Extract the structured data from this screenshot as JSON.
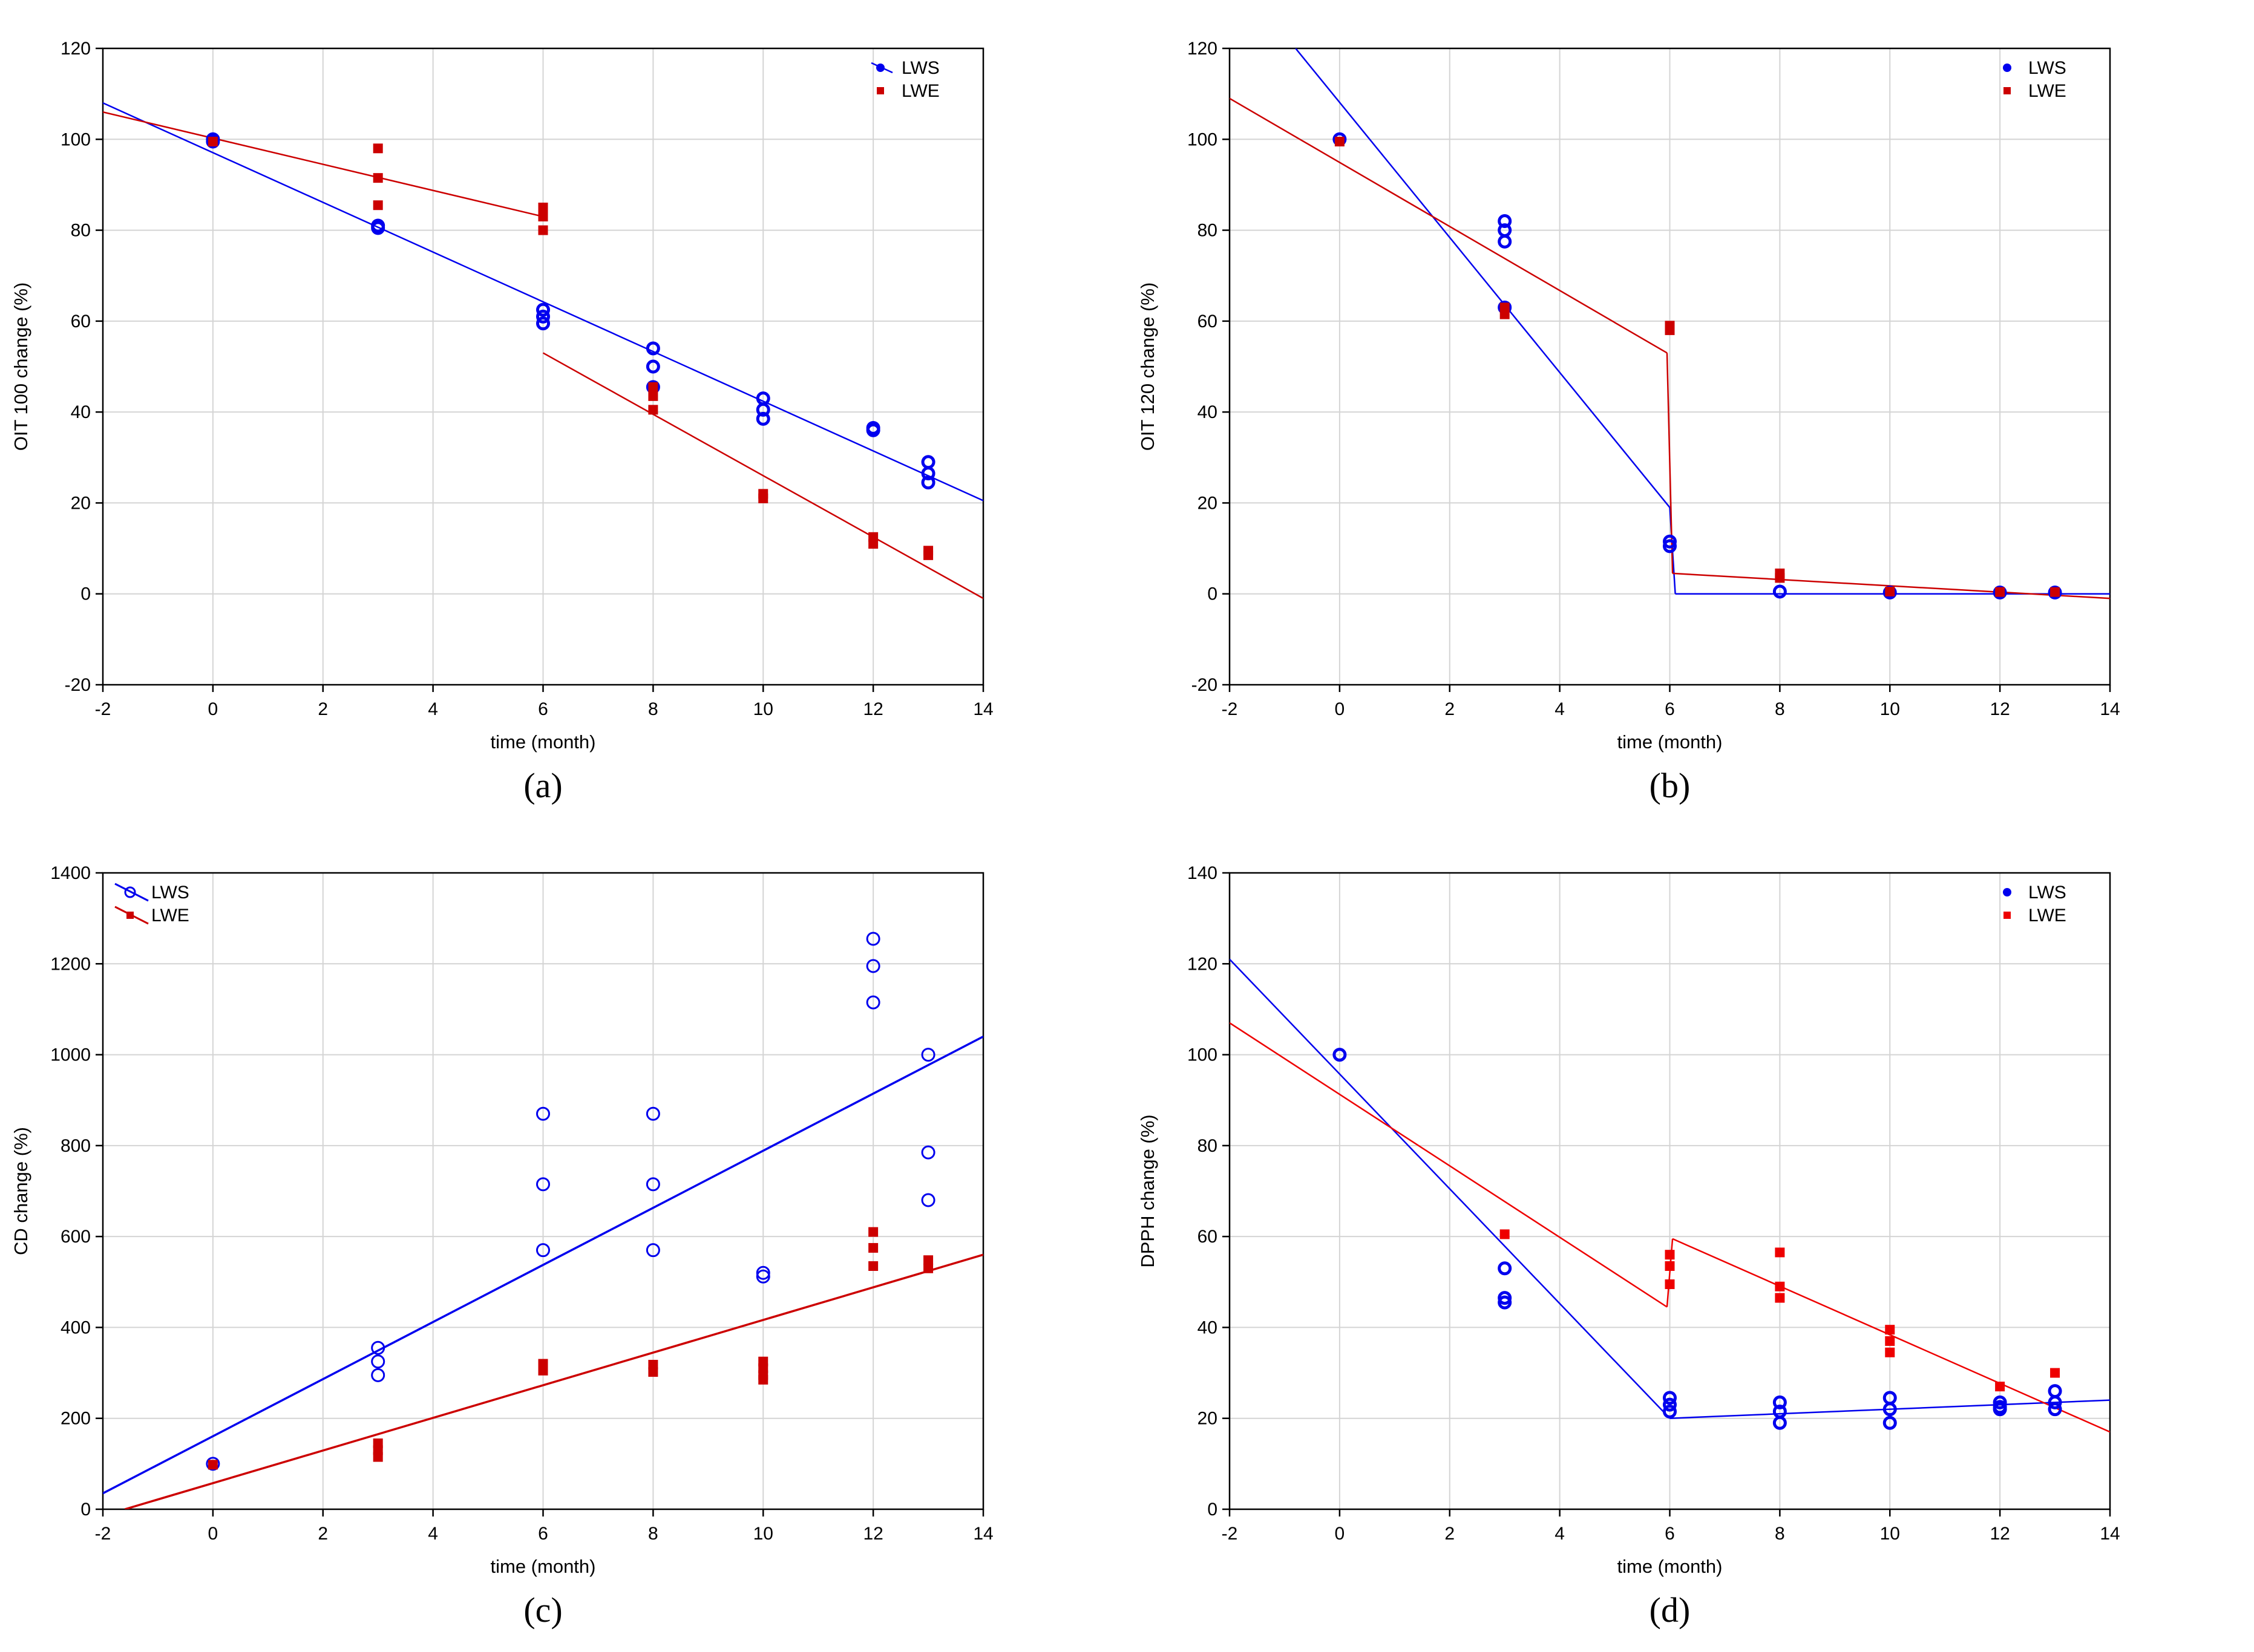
{
  "chart_data": [
    {
      "id": "a",
      "type": "scatter",
      "caption": "(a)",
      "xlabel": "time (month)",
      "ylabel": "OIT 100 change (%)",
      "xlim": [
        -2,
        14
      ],
      "ylim": [
        -20,
        120
      ],
      "xticks": [
        -2,
        0,
        2,
        4,
        6,
        8,
        10,
        12,
        14
      ],
      "yticks": [
        -20,
        0,
        20,
        40,
        60,
        80,
        100,
        120
      ],
      "grid": true,
      "legend": "top-right",
      "series": [
        {
          "name": "LWS",
          "color": "#0000ee",
          "marker": "ring",
          "points": [
            [
              0,
              99.5
            ],
            [
              0,
              100
            ],
            [
              3,
              80.5
            ],
            [
              3,
              81
            ],
            [
              6,
              59.5
            ],
            [
              6,
              61
            ],
            [
              6,
              62.5
            ],
            [
              8,
              50
            ],
            [
              8,
              54
            ],
            [
              8,
              45.5
            ],
            [
              10,
              38.5
            ],
            [
              10,
              40.5
            ],
            [
              10,
              43
            ],
            [
              12,
              36
            ],
            [
              12,
              36.5
            ],
            [
              13,
              24.5
            ],
            [
              13,
              26.5
            ],
            [
              13,
              29
            ]
          ],
          "fit": [
            [
              [
                -2,
                108
              ],
              [
                14,
                20.5
              ]
            ]
          ]
        },
        {
          "name": "LWE",
          "color": "#cc0000",
          "marker": "square",
          "points": [
            [
              0,
              99.5
            ],
            [
              3,
              98
            ],
            [
              3,
              91.5
            ],
            [
              3,
              85.5
            ],
            [
              6,
              85
            ],
            [
              6,
              83
            ],
            [
              6,
              80
            ],
            [
              8,
              45.5
            ],
            [
              8,
              43.5
            ],
            [
              8,
              40.5
            ],
            [
              10,
              21
            ],
            [
              10,
              22
            ],
            [
              12,
              11
            ],
            [
              12,
              12.5
            ],
            [
              13,
              8.5
            ],
            [
              13,
              9.5
            ]
          ],
          "fit": [
            [
              [
                -2,
                106
              ],
              [
                6,
                83
              ]
            ],
            [
              [
                6,
                53
              ],
              [
                14,
                -1
              ]
            ]
          ]
        }
      ]
    },
    {
      "id": "b",
      "type": "scatter",
      "caption": "(b)",
      "xlabel": "time (month)",
      "ylabel": "OIT 120 change (%)",
      "xlim": [
        -2,
        14
      ],
      "ylim": [
        -20,
        120
      ],
      "xticks": [
        -2,
        0,
        2,
        4,
        6,
        8,
        10,
        12,
        14
      ],
      "yticks": [
        -20,
        0,
        20,
        40,
        60,
        80,
        100,
        120
      ],
      "grid": true,
      "legend": "top-right",
      "series": [
        {
          "name": "LWS",
          "color": "#0000ee",
          "marker": "ring",
          "points": [
            [
              0,
              100
            ],
            [
              3,
              77.5
            ],
            [
              3,
              80
            ],
            [
              3,
              82
            ],
            [
              3,
              63
            ],
            [
              6,
              10.5
            ],
            [
              6,
              11.5
            ],
            [
              8,
              0.5
            ],
            [
              10,
              0.3
            ],
            [
              12,
              0.3
            ],
            [
              13,
              0.3
            ]
          ],
          "fit": [
            [
              [
                -0.8,
                120
              ],
              [
                6,
                19
              ]
            ],
            [
              [
                6,
                19
              ],
              [
                6.1,
                0
              ]
            ],
            [
              [
                6.1,
                0
              ],
              [
                14,
                0
              ]
            ]
          ]
        },
        {
          "name": "LWE",
          "color": "#cc0000",
          "marker": "square",
          "points": [
            [
              0,
              99.5
            ],
            [
              3,
              63
            ],
            [
              3,
              61.5
            ],
            [
              6,
              58
            ],
            [
              6,
              59
            ],
            [
              8,
              3.5
            ],
            [
              8,
              4.5
            ],
            [
              10,
              0.5
            ],
            [
              12,
              0.4
            ],
            [
              13,
              0.4
            ]
          ],
          "fit": [
            [
              [
                -2,
                109
              ],
              [
                5.95,
                53
              ]
            ],
            [
              [
                5.95,
                53
              ],
              [
                6.05,
                4.5
              ]
            ],
            [
              [
                6.05,
                4.5
              ],
              [
                14,
                -1
              ]
            ]
          ]
        }
      ]
    },
    {
      "id": "c",
      "type": "scatter",
      "caption": "(c)",
      "xlabel": "time (month)",
      "ylabel": "CD change (%)",
      "xlim": [
        -2,
        14
      ],
      "ylim": [
        0,
        1400
      ],
      "xticks": [
        -2,
        0,
        2,
        4,
        6,
        8,
        10,
        12,
        14
      ],
      "yticks": [
        0,
        200,
        400,
        600,
        800,
        1000,
        1200,
        1400
      ],
      "grid": true,
      "legend": "top-left",
      "series": [
        {
          "name": "LWS",
          "color": "#0000ee",
          "marker": "open",
          "points": [
            [
              0,
              100
            ],
            [
              3,
              355
            ],
            [
              3,
              325
            ],
            [
              3,
              295
            ],
            [
              6,
              870
            ],
            [
              6,
              715
            ],
            [
              6,
              570
            ],
            [
              8,
              870
            ],
            [
              8,
              715
            ],
            [
              8,
              570
            ],
            [
              10,
              520
            ],
            [
              10,
              512
            ],
            [
              12,
              1255
            ],
            [
              12,
              1195
            ],
            [
              12,
              1115
            ],
            [
              13,
              1000
            ],
            [
              13,
              785
            ],
            [
              13,
              680
            ]
          ],
          "fit": [
            [
              [
                -2,
                35
              ],
              [
                14,
                1040
              ]
            ]
          ]
        },
        {
          "name": "LWE",
          "color": "#cc0000",
          "marker": "square",
          "points": [
            [
              0,
              98
            ],
            [
              3,
              145
            ],
            [
              3,
              130
            ],
            [
              3,
              115
            ],
            [
              6,
              320
            ],
            [
              6,
              305
            ],
            [
              8,
              318
            ],
            [
              8,
              302
            ],
            [
              10,
              325
            ],
            [
              10,
              310
            ],
            [
              10,
              295
            ],
            [
              10,
              285
            ],
            [
              12,
              610
            ],
            [
              12,
              575
            ],
            [
              12,
              535
            ],
            [
              13,
              548
            ],
            [
              13,
              530
            ]
          ],
          "fit": [
            [
              [
                -1.6,
                0
              ],
              [
                14,
                560
              ]
            ]
          ]
        }
      ]
    },
    {
      "id": "d",
      "type": "scatter",
      "caption": "(d)",
      "xlabel": "time (month)",
      "ylabel": "DPPH change (%)",
      "xlim": [
        -2,
        14
      ],
      "ylim": [
        0,
        140
      ],
      "xticks": [
        -2,
        0,
        2,
        4,
        6,
        8,
        10,
        12,
        14
      ],
      "yticks": [
        0,
        20,
        40,
        60,
        80,
        100,
        120,
        140
      ],
      "grid": true,
      "legend": "top-right",
      "series": [
        {
          "name": "LWS",
          "color": "#0000ee",
          "marker": "ring",
          "points": [
            [
              0,
              100
            ],
            [
              3,
              53
            ],
            [
              3,
              46.5
            ],
            [
              3,
              45.5
            ],
            [
              6,
              24.5
            ],
            [
              6,
              23
            ],
            [
              6,
              21.5
            ],
            [
              8,
              23.5
            ],
            [
              8,
              21.5
            ],
            [
              8,
              19
            ],
            [
              10,
              24.5
            ],
            [
              10,
              22
            ],
            [
              10,
              19
            ],
            [
              12,
              23.5
            ],
            [
              12,
              22.5
            ],
            [
              12,
              22
            ],
            [
              13,
              26
            ],
            [
              13,
              23.5
            ],
            [
              13,
              22
            ]
          ],
          "fit": [
            [
              [
                -2,
                121
              ],
              [
                6,
                20
              ]
            ],
            [
              [
                6,
                20
              ],
              [
                14,
                24
              ]
            ]
          ]
        },
        {
          "name": "LWE",
          "color": "#ee0000",
          "marker": "square",
          "points": [
            [
              3,
              60.5
            ],
            [
              6,
              56
            ],
            [
              6,
              53.5
            ],
            [
              6,
              49.5
            ],
            [
              8,
              56.5
            ],
            [
              8,
              49
            ],
            [
              8,
              46.5
            ],
            [
              10,
              39.5
            ],
            [
              10,
              37
            ],
            [
              10,
              34.5
            ],
            [
              12,
              27
            ],
            [
              13,
              30
            ]
          ],
          "fit": [
            [
              [
                -2,
                107
              ],
              [
                5.95,
                44.5
              ]
            ],
            [
              [
                5.95,
                44.5
              ],
              [
                6.05,
                59.5
              ]
            ],
            [
              [
                6.05,
                59.5
              ],
              [
                14,
                17
              ]
            ]
          ]
        }
      ]
    }
  ]
}
